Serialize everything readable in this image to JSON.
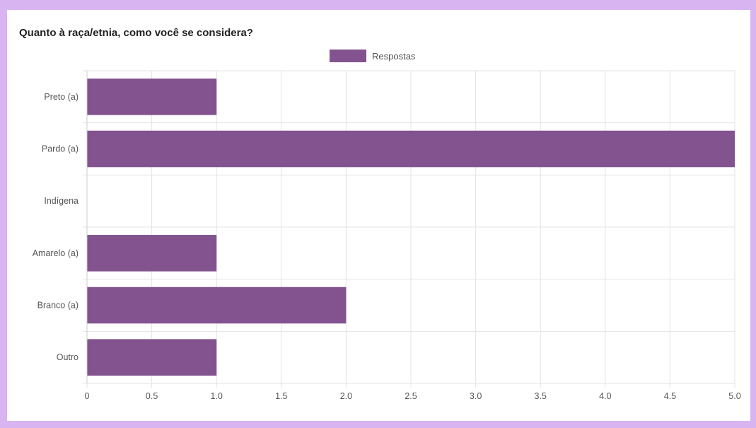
{
  "chart_data": {
    "type": "bar",
    "orientation": "horizontal",
    "title": "Quanto à raça/etnia, como você se considera?",
    "xlabel": "",
    "ylabel": "",
    "legend_position": "top-center",
    "grid": true,
    "xlim": [
      0,
      5
    ],
    "x_ticks": [
      "0",
      "0.5",
      "1.0",
      "1.5",
      "2.0",
      "2.5",
      "3.0",
      "3.5",
      "4.0",
      "4.5",
      "5.0"
    ],
    "categories": [
      "Preto (a)",
      "Pardo (a)",
      "Indígena",
      "Amarelo (a)",
      "Branco (a)",
      "Outro"
    ],
    "series": [
      {
        "name": "Respostas",
        "color": "#83538f",
        "values": [
          1,
          5,
          0,
          1,
          2,
          1
        ]
      }
    ]
  }
}
